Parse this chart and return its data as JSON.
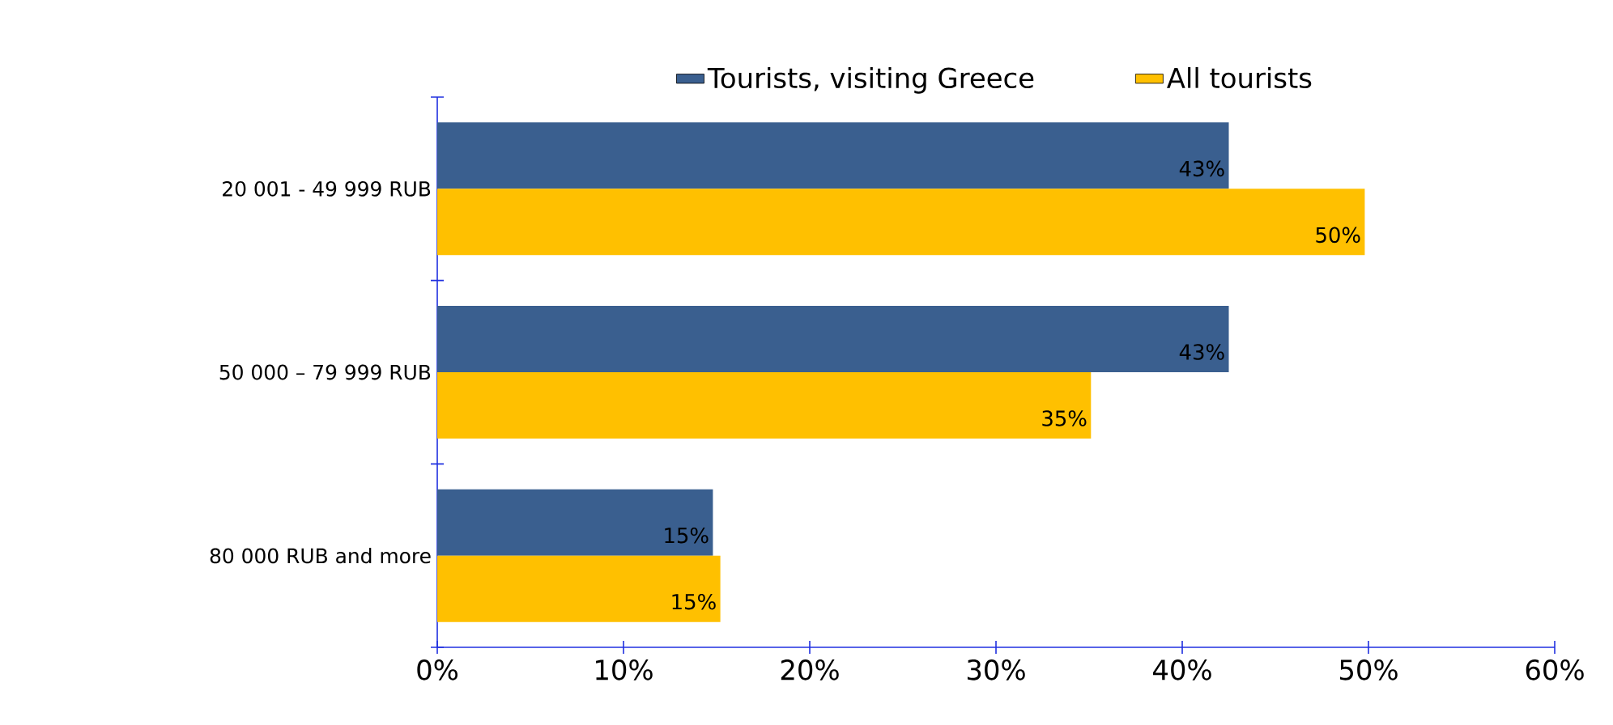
{
  "chart_data": {
    "type": "bar",
    "orientation": "horizontal",
    "categories": [
      "20 001 - 49 999 RUB",
      "50 000 – 79 999 RUB",
      "80 000 RUB and more"
    ],
    "series": [
      {
        "name": "Tourists, visiting Greece",
        "color": "#3a5f8f",
        "values": [
          42.5,
          42.5,
          14.8
        ],
        "value_labels": [
          "43%",
          "43%",
          "15%"
        ]
      },
      {
        "name": "All tourists",
        "color": "#ffc000",
        "values": [
          49.8,
          35.1,
          15.2
        ],
        "value_labels": [
          "50%",
          "35%",
          "15%"
        ]
      }
    ],
    "xlim": [
      0,
      60
    ],
    "xticks": [
      {
        "value": 0,
        "label": "0%"
      },
      {
        "value": 10,
        "label": "10%"
      },
      {
        "value": 20,
        "label": "20%"
      },
      {
        "value": 30,
        "label": "30%"
      },
      {
        "value": 40,
        "label": "40%"
      },
      {
        "value": 50,
        "label": "50%"
      },
      {
        "value": 60,
        "label": "60%"
      }
    ],
    "legend": "top",
    "grid": false
  }
}
